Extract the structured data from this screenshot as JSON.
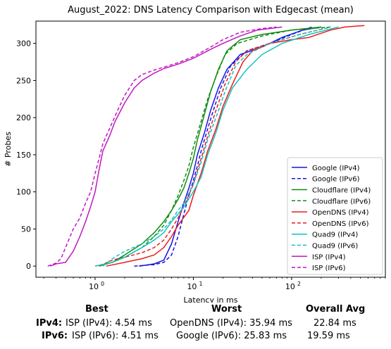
{
  "colors": {
    "google": "#1414e6",
    "cloudflare": "#118c11",
    "opendns": "#ee1b1b",
    "quad9": "#17c0c0",
    "isp": "#c018c0"
  },
  "chart_data": {
    "type": "line",
    "title": "August_2022: DNS Latency Comparison with Edgecast (mean)",
    "xlabel": "Latency in ms",
    "ylabel": "# Probes",
    "xscale": "log",
    "xlim": [
      0.25,
      900
    ],
    "ylim": [
      -15,
      330
    ],
    "xticks": [
      {
        "value": 1,
        "label": "10",
        "exp": "0"
      },
      {
        "value": 10,
        "label": "10",
        "exp": "1"
      },
      {
        "value": 100,
        "label": "10",
        "exp": "2"
      }
    ],
    "yticks": [
      0,
      50,
      100,
      150,
      200,
      250,
      300
    ],
    "legend_position": "lower-right",
    "series": [
      {
        "name": "Google (IPv4)",
        "color_key": "google",
        "style": "solid",
        "points": [
          [
            2.8,
            0
          ],
          [
            4,
            3
          ],
          [
            5,
            8
          ],
          [
            6,
            30
          ],
          [
            7,
            60
          ],
          [
            8,
            85
          ],
          [
            9,
            105
          ],
          [
            10,
            125
          ],
          [
            11,
            150
          ],
          [
            13,
            180
          ],
          [
            15,
            210
          ],
          [
            18,
            240
          ],
          [
            22,
            265
          ],
          [
            30,
            285
          ],
          [
            50,
            295
          ],
          [
            80,
            308
          ],
          [
            130,
            318
          ],
          [
            200,
            322
          ]
        ]
      },
      {
        "name": "Google (IPv6)",
        "color_key": "google",
        "style": "dashed",
        "points": [
          [
            2.5,
            0
          ],
          [
            4,
            2
          ],
          [
            5,
            5
          ],
          [
            6,
            15
          ],
          [
            7,
            40
          ],
          [
            8,
            70
          ],
          [
            9,
            95
          ],
          [
            10,
            115
          ],
          [
            11,
            135
          ],
          [
            12,
            155
          ],
          [
            14,
            185
          ],
          [
            16,
            210
          ],
          [
            19,
            240
          ],
          [
            24,
            270
          ],
          [
            35,
            290
          ],
          [
            60,
            300
          ],
          [
            100,
            312
          ],
          [
            160,
            322
          ]
        ]
      },
      {
        "name": "Cloudflare (IPv4)",
        "color_key": "cloudflare",
        "style": "solid",
        "points": [
          [
            1.1,
            0
          ],
          [
            1.5,
            5
          ],
          [
            2,
            15
          ],
          [
            3,
            30
          ],
          [
            4,
            45
          ],
          [
            5,
            60
          ],
          [
            6,
            75
          ],
          [
            7,
            90
          ],
          [
            8,
            105
          ],
          [
            9,
            125
          ],
          [
            10,
            145
          ],
          [
            11,
            170
          ],
          [
            13,
            205
          ],
          [
            15,
            235
          ],
          [
            18,
            265
          ],
          [
            22,
            290
          ],
          [
            30,
            305
          ],
          [
            50,
            312
          ],
          [
            100,
            318
          ],
          [
            200,
            322
          ]
        ]
      },
      {
        "name": "Cloudflare (IPv6)",
        "color_key": "cloudflare",
        "style": "dashed",
        "points": [
          [
            1,
            0
          ],
          [
            1.5,
            5
          ],
          [
            2,
            12
          ],
          [
            3,
            25
          ],
          [
            4,
            40
          ],
          [
            5,
            55
          ],
          [
            6,
            75
          ],
          [
            7,
            95
          ],
          [
            8,
            115
          ],
          [
            9,
            135
          ],
          [
            10,
            160
          ],
          [
            12,
            195
          ],
          [
            14,
            225
          ],
          [
            17,
            255
          ],
          [
            21,
            285
          ],
          [
            28,
            300
          ],
          [
            50,
            310
          ],
          [
            100,
            318
          ],
          [
            250,
            322
          ]
        ]
      },
      {
        "name": "OpenDNS (IPv4)",
        "color_key": "opendns",
        "style": "solid",
        "points": [
          [
            1.3,
            0
          ],
          [
            2,
            5
          ],
          [
            3,
            10
          ],
          [
            4,
            15
          ],
          [
            5,
            25
          ],
          [
            6,
            40
          ],
          [
            7,
            55
          ],
          [
            9,
            75
          ],
          [
            10,
            95
          ],
          [
            12,
            125
          ],
          [
            14,
            155
          ],
          [
            17,
            185
          ],
          [
            20,
            215
          ],
          [
            25,
            245
          ],
          [
            32,
            275
          ],
          [
            40,
            290
          ],
          [
            60,
            300
          ],
          [
            100,
            305
          ],
          [
            150,
            308
          ],
          [
            250,
            318
          ],
          [
            350,
            322
          ],
          [
            550,
            324
          ]
        ]
      },
      {
        "name": "OpenDNS (IPv6)",
        "color_key": "opendns",
        "style": "dashed",
        "points": [
          [
            1.1,
            0
          ],
          [
            1.5,
            8
          ],
          [
            2,
            12
          ],
          [
            3,
            18
          ],
          [
            4,
            25
          ],
          [
            5,
            35
          ],
          [
            6,
            50
          ],
          [
            7,
            65
          ],
          [
            8,
            80
          ],
          [
            10,
            110
          ],
          [
            12,
            145
          ],
          [
            14,
            175
          ],
          [
            17,
            210
          ],
          [
            21,
            245
          ],
          [
            27,
            275
          ],
          [
            35,
            290
          ],
          [
            60,
            300
          ],
          [
            120,
            312
          ],
          [
            250,
            322
          ]
        ]
      },
      {
        "name": "Quad9 (IPv4)",
        "color_key": "quad9",
        "style": "solid",
        "points": [
          [
            1,
            0
          ],
          [
            1.5,
            5
          ],
          [
            2,
            12
          ],
          [
            3,
            25
          ],
          [
            4,
            35
          ],
          [
            5,
            45
          ],
          [
            6,
            60
          ],
          [
            7,
            70
          ],
          [
            8,
            80
          ],
          [
            10,
            100
          ],
          [
            12,
            120
          ],
          [
            14,
            150
          ],
          [
            17,
            180
          ],
          [
            20,
            210
          ],
          [
            25,
            240
          ],
          [
            35,
            265
          ],
          [
            50,
            285
          ],
          [
            80,
            300
          ],
          [
            150,
            312
          ],
          [
            300,
            322
          ]
        ]
      },
      {
        "name": "Quad9 (IPv6)",
        "color_key": "quad9",
        "style": "dashed",
        "points": [
          [
            1.2,
            0
          ],
          [
            1.5,
            10
          ],
          [
            2,
            20
          ],
          [
            3,
            30
          ],
          [
            4,
            40
          ],
          [
            5,
            50
          ],
          [
            6,
            62
          ],
          [
            7,
            75
          ],
          [
            8,
            85
          ],
          [
            10,
            110
          ],
          [
            12,
            140
          ],
          [
            14,
            170
          ],
          [
            17,
            200
          ],
          [
            21,
            235
          ],
          [
            27,
            270
          ],
          [
            35,
            285
          ],
          [
            60,
            300
          ],
          [
            120,
            312
          ],
          [
            250,
            322
          ]
        ]
      },
      {
        "name": "ISP (IPv4)",
        "color_key": "isp",
        "style": "solid",
        "points": [
          [
            0.35,
            0
          ],
          [
            0.4,
            3
          ],
          [
            0.5,
            5
          ],
          [
            0.6,
            20
          ],
          [
            0.7,
            40
          ],
          [
            0.8,
            60
          ],
          [
            0.9,
            80
          ],
          [
            1,
            100
          ],
          [
            1.1,
            130
          ],
          [
            1.2,
            155
          ],
          [
            1.4,
            175
          ],
          [
            1.6,
            195
          ],
          [
            2,
            220
          ],
          [
            2.5,
            240
          ],
          [
            3,
            250
          ],
          [
            4,
            260
          ],
          [
            5,
            266
          ],
          [
            7,
            272
          ],
          [
            10,
            280
          ],
          [
            15,
            292
          ],
          [
            20,
            300
          ],
          [
            30,
            310
          ],
          [
            45,
            318
          ],
          [
            80,
            322
          ]
        ]
      },
      {
        "name": "ISP (IPv6)",
        "color_key": "isp",
        "style": "dashed",
        "points": [
          [
            0.33,
            0
          ],
          [
            0.4,
            4
          ],
          [
            0.45,
            10
          ],
          [
            0.5,
            25
          ],
          [
            0.6,
            50
          ],
          [
            0.7,
            65
          ],
          [
            0.8,
            85
          ],
          [
            0.9,
            100
          ],
          [
            1,
            125
          ],
          [
            1.1,
            145
          ],
          [
            1.2,
            165
          ],
          [
            1.4,
            185
          ],
          [
            1.7,
            210
          ],
          [
            2,
            230
          ],
          [
            2.5,
            250
          ],
          [
            3,
            258
          ],
          [
            4,
            264
          ],
          [
            5,
            268
          ],
          [
            7,
            274
          ],
          [
            10,
            282
          ],
          [
            15,
            295
          ],
          [
            20,
            305
          ],
          [
            30,
            315
          ],
          [
            50,
            320
          ],
          [
            70,
            322
          ]
        ]
      }
    ],
    "summary": {
      "headers": {
        "best": "Best",
        "worst": "Worst",
        "avg": "Overall Avg"
      },
      "rows": [
        {
          "label": "IPv4:",
          "best": "ISP (IPv4): 4.54 ms",
          "worst": "OpenDNS (IPv4): 35.94 ms",
          "avg": "22.84 ms"
        },
        {
          "label": "IPv6:",
          "best": "ISP (IPv6): 4.51 ms",
          "worst": "Google (IPv6): 25.83 ms",
          "avg": "19.59 ms"
        }
      ]
    }
  }
}
